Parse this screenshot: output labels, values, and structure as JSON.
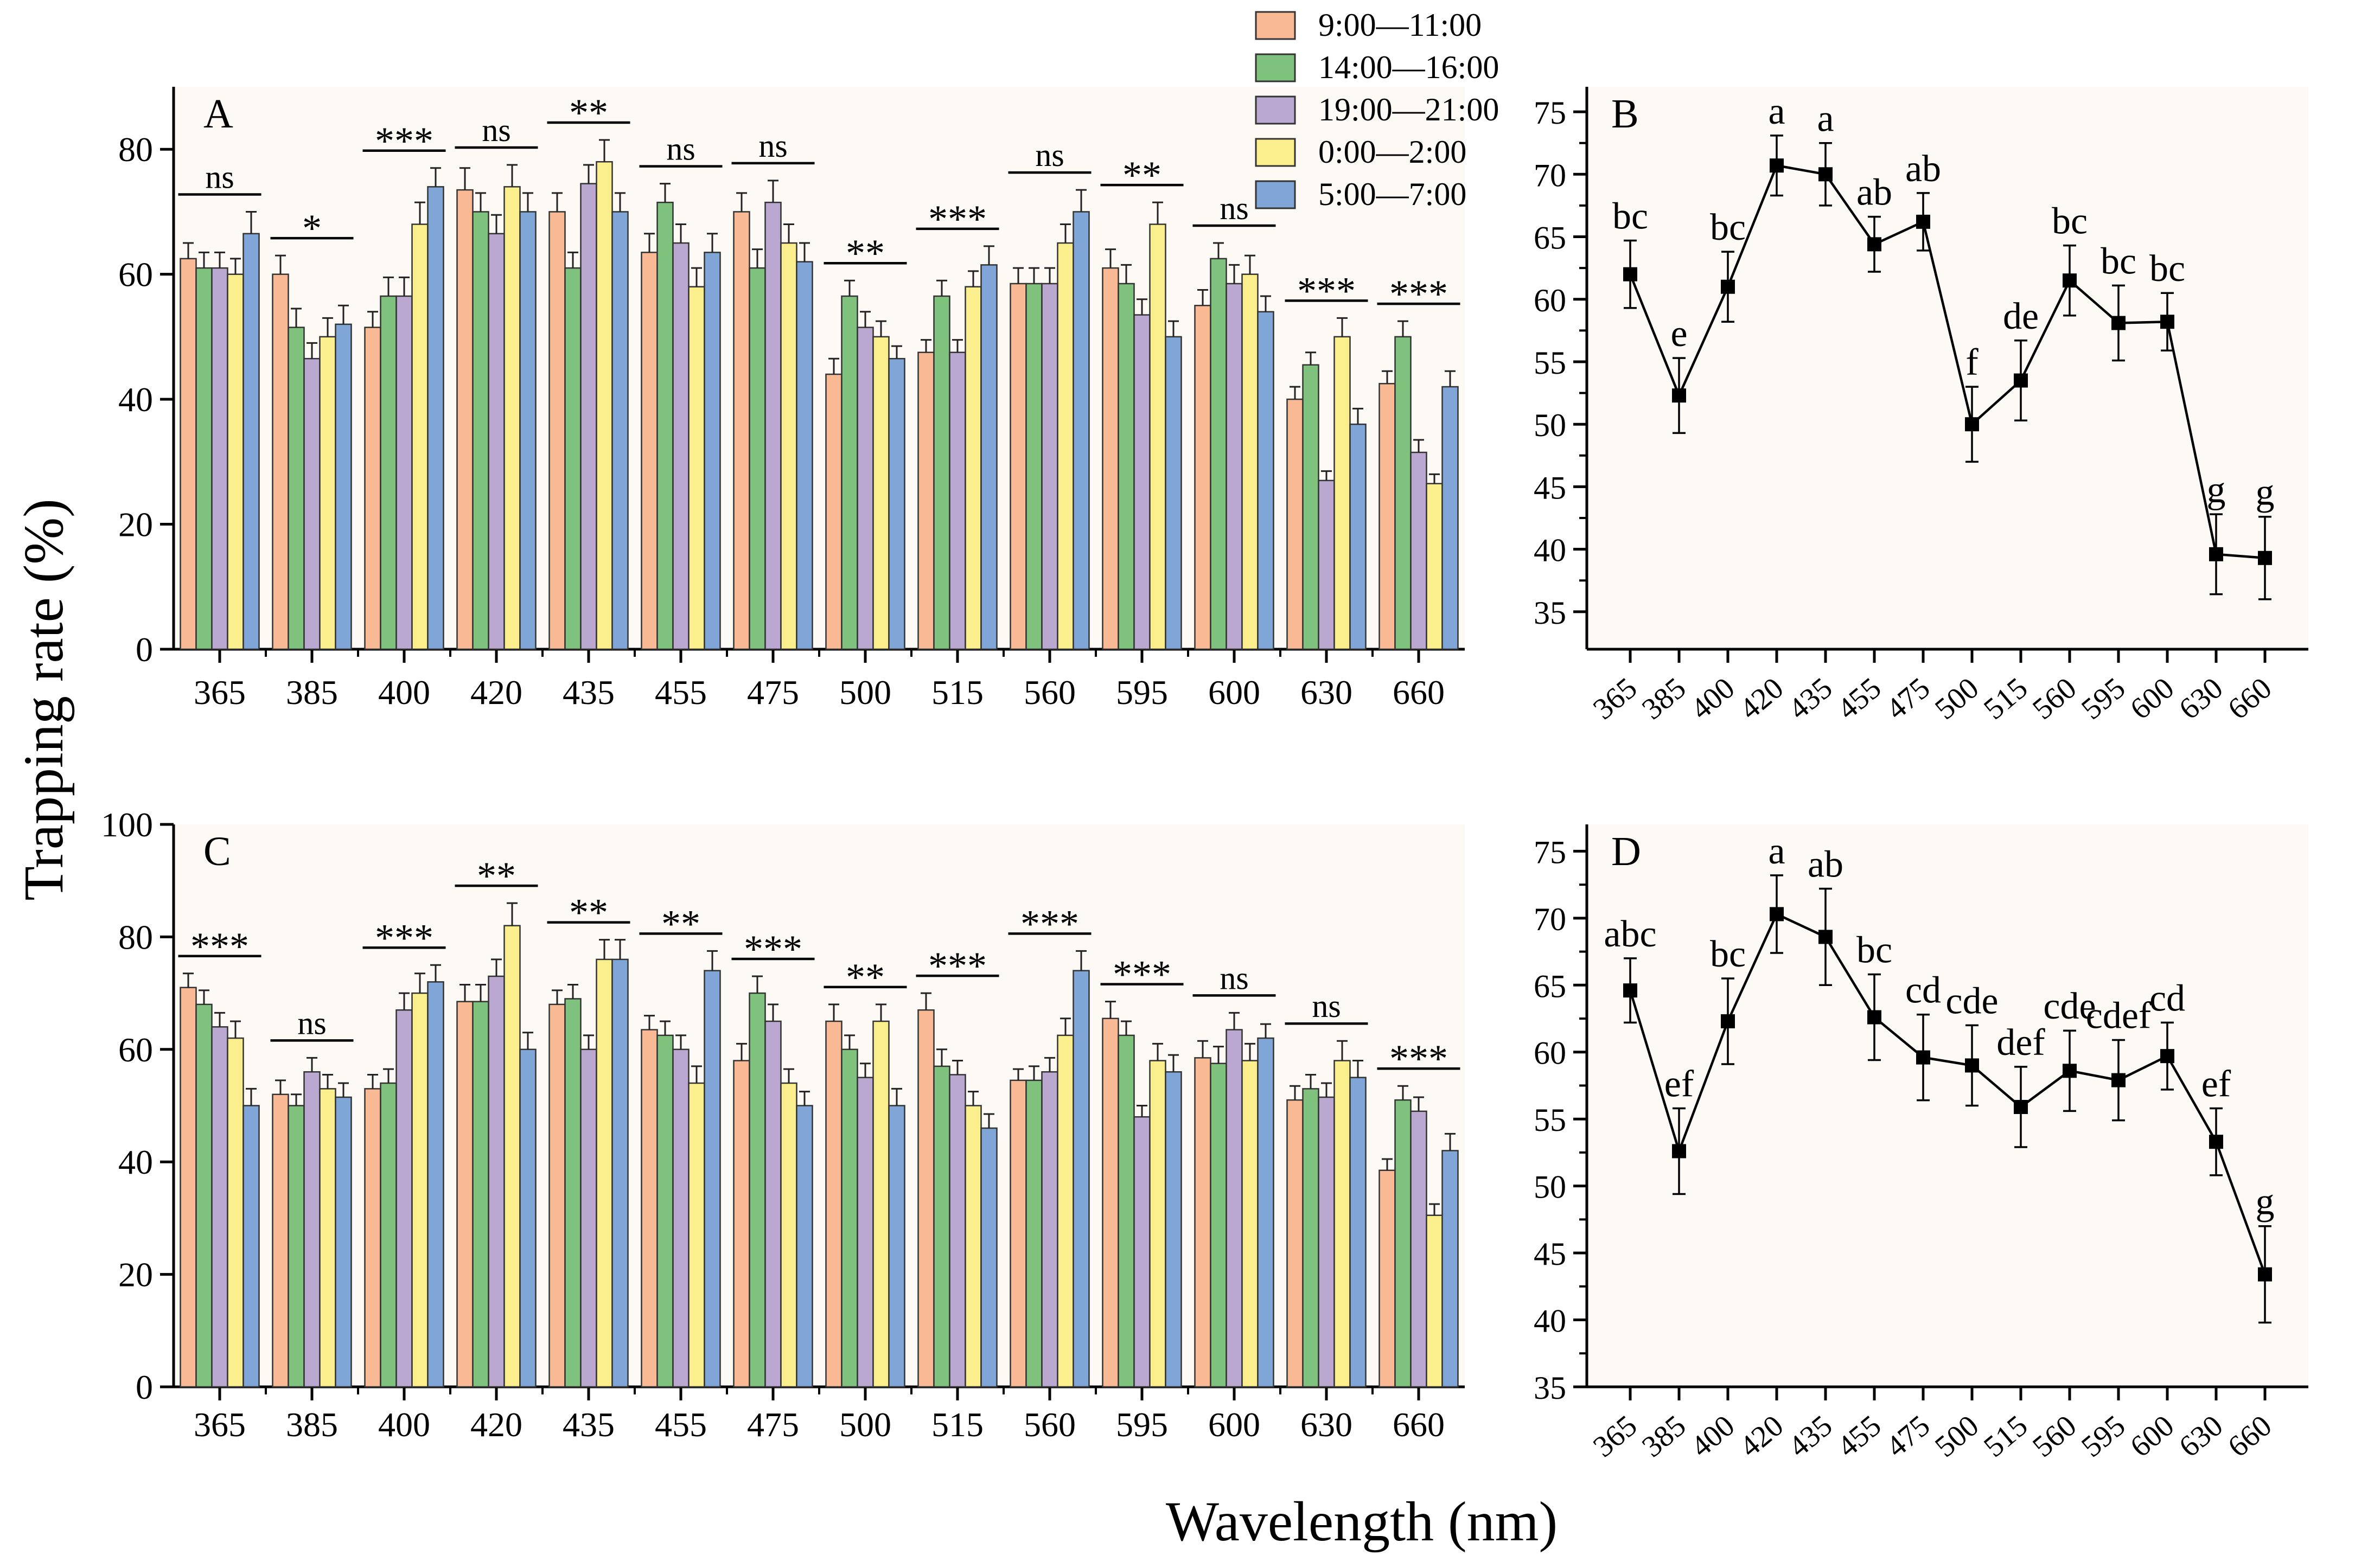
{
  "figure": {
    "ylabel": "Trapping rate (%)",
    "xlabel": "Wavelength (nm)"
  },
  "colors": {
    "series": [
      "#f9b994",
      "#7fc27d",
      "#bba8d0",
      "#fbef8d",
      "#7fa6d6"
    ],
    "panel_bg": "#fdf9f5"
  },
  "legend": {
    "placement": "top-center",
    "entries": [
      "9:00—11:00",
      "14:00—16:00",
      "19:00—21:00",
      "0:00—2:00",
      "5:00—7:00"
    ]
  },
  "chart_data": [
    {
      "panel": "A",
      "type": "bar",
      "categories": [
        "365",
        "385",
        "400",
        "420",
        "435",
        "455",
        "475",
        "500",
        "515",
        "560",
        "595",
        "600",
        "630",
        "660"
      ],
      "ylim": [
        0,
        90
      ],
      "yticks": [
        0,
        20,
        40,
        60,
        80
      ],
      "series": [
        {
          "name": "9:00—11:00",
          "values": [
            62.5,
            60,
            51.5,
            73.5,
            70,
            63.5,
            70,
            44,
            47.5,
            58.5,
            61,
            55,
            40,
            42.5
          ],
          "errors": [
            2.5,
            3,
            2.5,
            3.5,
            3,
            3,
            3,
            2.5,
            2,
            2.5,
            3,
            2.5,
            2,
            2
          ]
        },
        {
          "name": "14:00—16:00",
          "values": [
            61,
            51.5,
            56.5,
            70,
            61,
            71.5,
            61,
            56.5,
            56.5,
            58.5,
            58.5,
            62.5,
            45.5,
            50
          ],
          "errors": [
            2.5,
            3,
            3,
            3,
            2.5,
            3,
            3,
            2.5,
            2.5,
            2.5,
            3,
            2.5,
            2,
            2.5
          ]
        },
        {
          "name": "19:00—21:00",
          "values": [
            61,
            46.5,
            56.5,
            66.5,
            74.5,
            65,
            71.5,
            51.5,
            47.5,
            58.5,
            53.5,
            58.5,
            27,
            31.5
          ],
          "errors": [
            2.5,
            2.5,
            3,
            3,
            3,
            3,
            3.5,
            2.5,
            2,
            2.5,
            2.5,
            3,
            1.5,
            2
          ]
        },
        {
          "name": "0:00—2:00",
          "values": [
            60,
            50,
            68,
            74,
            78,
            58,
            65,
            50,
            58,
            65,
            68,
            60,
            50,
            26.5
          ],
          "errors": [
            2.5,
            3,
            3.5,
            3.5,
            3.5,
            3,
            3,
            2.5,
            2.5,
            3,
            3.5,
            3,
            3,
            1.5
          ]
        },
        {
          "name": "5:00—7:00",
          "values": [
            66.5,
            52,
            74,
            70,
            70,
            63.5,
            62,
            46.5,
            61.5,
            70,
            50,
            54,
            36,
            42
          ],
          "errors": [
            3.5,
            3,
            3,
            3,
            3,
            3,
            3,
            2,
            3,
            3.5,
            2.5,
            2.5,
            2.5,
            2.5
          ]
        }
      ],
      "significance": [
        "ns",
        "*",
        "***",
        "ns",
        "**",
        "ns",
        "ns",
        "**",
        "***",
        "ns",
        "**",
        "ns",
        "***",
        "***"
      ]
    },
    {
      "panel": "B",
      "type": "line",
      "x": [
        "365",
        "385",
        "400",
        "420",
        "435",
        "455",
        "475",
        "500",
        "515",
        "560",
        "595",
        "600",
        "630",
        "660"
      ],
      "values": [
        62,
        52.3,
        61,
        70.7,
        70,
        64.4,
        66.2,
        50,
        53.5,
        61.5,
        58.1,
        58.2,
        39.6,
        39.3
      ],
      "errors": [
        2.7,
        3,
        2.8,
        2.4,
        2.5,
        2.2,
        2.3,
        3,
        3.2,
        2.8,
        3,
        2.3,
        3.2,
        3.3
      ],
      "labels": [
        "bc",
        "e",
        "bc",
        "a",
        "a",
        "ab",
        "ab",
        "f",
        "de",
        "bc",
        "bc",
        "bc",
        "g",
        "g"
      ],
      "ylim": [
        32,
        77
      ],
      "yticks": [
        35,
        40,
        45,
        50,
        55,
        60,
        65,
        70,
        75
      ]
    },
    {
      "panel": "C",
      "type": "bar",
      "categories": [
        "365",
        "385",
        "400",
        "420",
        "435",
        "455",
        "475",
        "500",
        "515",
        "560",
        "595",
        "600",
        "630",
        "660"
      ],
      "ylim": [
        0,
        100
      ],
      "yticks": [
        0,
        20,
        40,
        60,
        80,
        100
      ],
      "series": [
        {
          "name": "9:00—11:00",
          "values": [
            71,
            52,
            53,
            68.5,
            68,
            63.5,
            58,
            65,
            67,
            54.5,
            65.5,
            58.5,
            51,
            38.5
          ],
          "errors": [
            2.5,
            2.5,
            2.5,
            3,
            2.5,
            2.5,
            3,
            3,
            3,
            2,
            3,
            3,
            2.5,
            2
          ]
        },
        {
          "name": "14:00—16:00",
          "values": [
            68,
            50,
            54,
            68.5,
            69,
            62.5,
            70,
            60,
            57,
            54.5,
            62.5,
            57.5,
            53,
            51
          ],
          "errors": [
            2.5,
            2,
            2.5,
            3,
            2.5,
            2.5,
            3,
            2.5,
            3,
            2.5,
            2.5,
            3,
            2.5,
            2.5
          ]
        },
        {
          "name": "19:00—21:00",
          "values": [
            64,
            56,
            67,
            73,
            60,
            60,
            65,
            55,
            55.5,
            56,
            48,
            63.5,
            51.5,
            49
          ],
          "errors": [
            2.5,
            2.5,
            3,
            3,
            2.5,
            2.5,
            3,
            2.5,
            2.5,
            2.5,
            2,
            3,
            2.5,
            2.5
          ]
        },
        {
          "name": "0:00—2:00",
          "values": [
            62,
            53,
            70,
            82,
            76,
            54,
            54,
            65,
            50,
            62.5,
            58,
            58,
            58,
            30.5
          ],
          "errors": [
            3,
            2.5,
            3.5,
            4,
            3.5,
            3,
            2.5,
            3,
            2.5,
            3,
            3,
            3,
            3.5,
            2
          ]
        },
        {
          "name": "5:00—7:00",
          "values": [
            50,
            51.5,
            72,
            60,
            76,
            74,
            50,
            50,
            46,
            74,
            56,
            62,
            55,
            42
          ],
          "errors": [
            3,
            2.5,
            3,
            3,
            3.5,
            3.5,
            2.5,
            3,
            2.5,
            3.5,
            3,
            2.5,
            3,
            3
          ]
        }
      ],
      "significance": [
        "***",
        "ns",
        "***",
        "**",
        "**",
        "**",
        "***",
        "**",
        "***",
        "***",
        "***",
        "ns",
        "ns",
        "***"
      ]
    },
    {
      "panel": "D",
      "type": "line",
      "x": [
        "365",
        "385",
        "400",
        "420",
        "435",
        "455",
        "475",
        "500",
        "515",
        "560",
        "595",
        "600",
        "630",
        "660"
      ],
      "values": [
        64.6,
        52.6,
        62.3,
        70.3,
        68.6,
        62.6,
        59.6,
        59,
        55.9,
        58.6,
        57.9,
        59.7,
        53.3,
        43.4
      ],
      "errors": [
        2.4,
        3.2,
        3.2,
        2.9,
        3.6,
        3.2,
        3.2,
        3,
        3,
        3,
        3,
        2.5,
        2.5,
        3.6
      ],
      "labels": [
        "abc",
        "ef",
        "bc",
        "a",
        "ab",
        "bc",
        "cd",
        "cde",
        "def",
        "cde",
        "cdef",
        "cd",
        "ef",
        "g"
      ],
      "ylim": [
        35,
        77
      ],
      "yticks": [
        35,
        40,
        45,
        50,
        55,
        60,
        65,
        70,
        75
      ]
    }
  ]
}
